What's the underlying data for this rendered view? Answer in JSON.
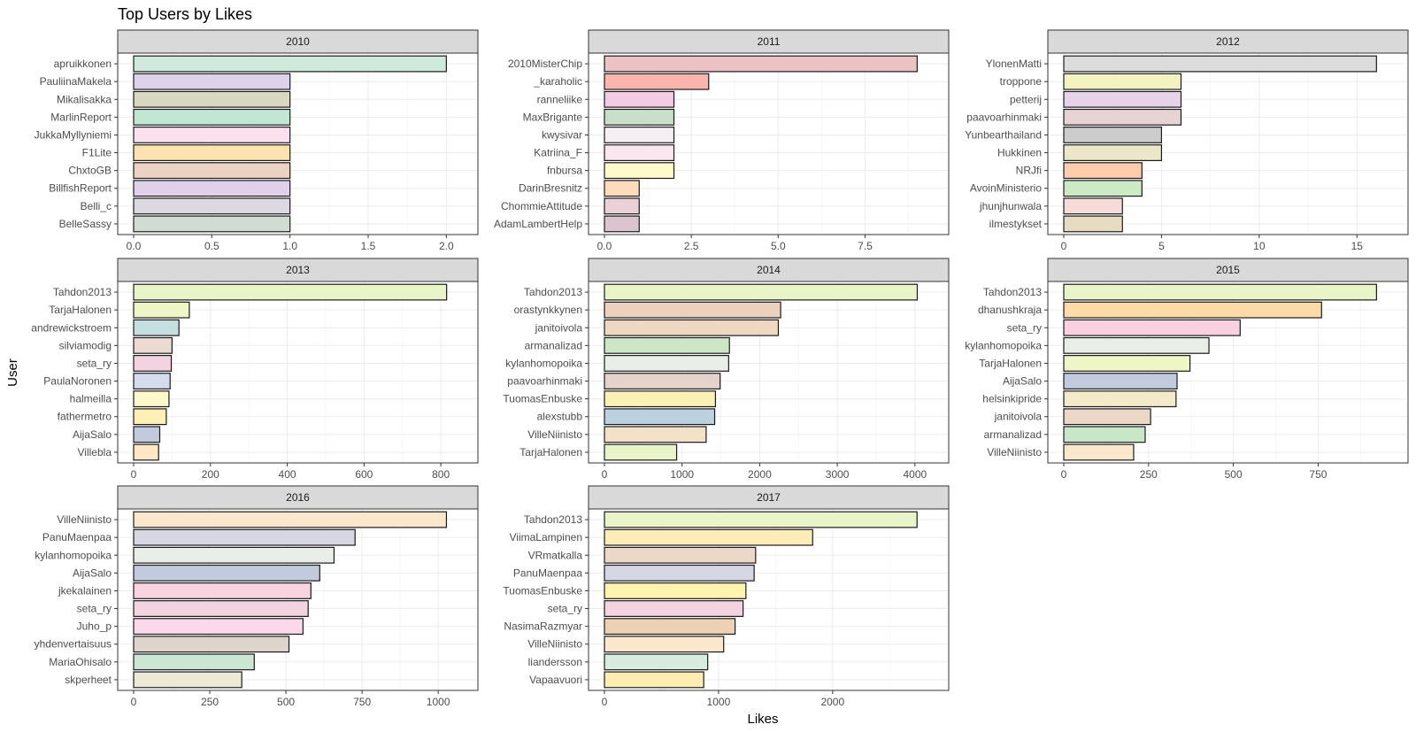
{
  "chart_data": {
    "type": "bar",
    "orientation": "horizontal",
    "layout": "facet_wrap",
    "title": "Top Users by Likes",
    "xlabel": "Likes",
    "ylabel": "User",
    "panels": [
      {
        "facet": "2010",
        "xlim": [
          0,
          2.1
        ],
        "xticks": [
          0,
          0.5,
          1,
          1.5,
          2
        ],
        "xtick_labels": [
          "0.0",
          "0.5",
          "1.0",
          "1.5",
          "2.0"
        ],
        "categories": [
          "apruikkonen",
          "PauliinaMakela",
          "Mikalisakka",
          "MarlinReport",
          "JukkaMyllyniemi",
          "F1Lite",
          "ChxtoGB",
          "BillfishReport",
          "Belli_c",
          "BelleSassy"
        ],
        "values": [
          2,
          1,
          1,
          1,
          1,
          1,
          1,
          1,
          1,
          1
        ],
        "colors": [
          "#cfe9dd",
          "#dcd3ea",
          "#d8d8c0",
          "#c0e6d4",
          "#fbe0ee",
          "#fde3b0",
          "#ecd2c2",
          "#e0d0ea",
          "#dcd8df",
          "#d3dcd3"
        ]
      },
      {
        "facet": "2011",
        "xlim": [
          0,
          9.45
        ],
        "xticks": [
          0,
          2.5,
          5,
          7.5
        ],
        "xtick_labels": [
          "0.0",
          "2.5",
          "5.0",
          "7.5"
        ],
        "categories": [
          "2010MisterChip",
          "_karaholic",
          "ranneliike",
          "MaxBrigante",
          "kwysivar",
          "Katriina_F",
          "fnbursa",
          "DarinBresnitz",
          "ChommieAttitude",
          "AdamLambertHelp"
        ],
        "values": [
          9,
          3,
          2,
          2,
          2,
          2,
          2,
          1,
          1,
          1
        ],
        "colors": [
          "#ecc2c5",
          "#fbb4ae",
          "#f4cbe4",
          "#c9dfc9",
          "#f5eef2",
          "#f9e6ef",
          "#fffacc",
          "#fddcbb",
          "#ebd0d8",
          "#dcc4cf"
        ]
      },
      {
        "facet": "2012",
        "xlim": [
          0,
          16.8
        ],
        "xticks": [
          0,
          5,
          10,
          15
        ],
        "xtick_labels": [
          "0",
          "5",
          "10",
          "15"
        ],
        "categories": [
          "YlonenMatti",
          "troppone",
          "petterij",
          "paavoarhinmaki",
          "Yunbearthailand",
          "Hukkinen",
          "NRJfi",
          "AvoinMinisterio",
          "jhunjhunwala",
          "ilmestykset"
        ],
        "values": [
          16,
          6,
          6,
          6,
          5,
          5,
          4,
          4,
          3,
          3
        ],
        "colors": [
          "#dcdcdc",
          "#f3f3bf",
          "#e7d3e7",
          "#e7d2d4",
          "#cccccc",
          "#ece7c9",
          "#fdcdac",
          "#ccebc5",
          "#f5dcd9",
          "#e6dcc2"
        ]
      },
      {
        "facet": "2013",
        "xlim": [
          0,
          855
        ],
        "xticks": [
          0,
          200,
          400,
          600,
          800
        ],
        "xtick_labels": [
          "0",
          "200",
          "400",
          "600",
          "800"
        ],
        "categories": [
          "Tahdon2013",
          "TarjaHalonen",
          "andrewickstroem",
          "silviamodig",
          "seta_ry",
          "PaulaNoronen",
          "halmeilla",
          "fathermetro",
          "AijaSalo",
          "Villebla"
        ],
        "values": [
          815,
          145,
          118,
          100,
          98,
          95,
          92,
          85,
          68,
          65
        ],
        "colors": [
          "#e9f4c8",
          "#eef6c6",
          "#c5dfe1",
          "#ecdbd3",
          "#f3d3e0",
          "#d5dcee",
          "#fdf8cc",
          "#fff0b5",
          "#c2cbde",
          "#fde7c5"
        ]
      },
      {
        "facet": "2014",
        "xlim": [
          0,
          4230
        ],
        "xticks": [
          0,
          1000,
          2000,
          3000,
          4000
        ],
        "xtick_labels": [
          "0",
          "1000",
          "2000",
          "3000",
          "4000"
        ],
        "categories": [
          "Tahdon2013",
          "orastynkkynen",
          "janitoivola",
          "armanalizad",
          "kylanhomopoika",
          "paavoarhinmaki",
          "TuomasEnbuske",
          "alexstubb",
          "VilleNiinisto",
          "TarjaHalonen"
        ],
        "values": [
          4030,
          2270,
          2240,
          1610,
          1600,
          1490,
          1430,
          1420,
          1310,
          930
        ],
        "colors": [
          "#e9f4c8",
          "#ecd1bf",
          "#efd8c2",
          "#cde7c6",
          "#e9eee9",
          "#e5d3cb",
          "#fbf1b4",
          "#bcd0e0",
          "#f3e2c8",
          "#e9f4c8"
        ]
      },
      {
        "facet": "2015",
        "xlim": [
          0,
          968
        ],
        "xticks": [
          0,
          250,
          500,
          750
        ],
        "xtick_labels": [
          "0",
          "250",
          "500",
          "750"
        ],
        "categories": [
          "Tahdon2013",
          "dhanushkraja",
          "seta_ry",
          "kylanhomopoika",
          "TarjaHalonen",
          "AijaSalo",
          "helsinkipride",
          "janitoivola",
          "armanalizad",
          "VilleNiinisto"
        ],
        "values": [
          922,
          760,
          520,
          428,
          372,
          334,
          331,
          256,
          240,
          206
        ],
        "colors": [
          "#e9f4c8",
          "#fddba8",
          "#f8d0df",
          "#e9eee9",
          "#eef6c6",
          "#c2cbde",
          "#f2eac8",
          "#ecd8c8",
          "#c8e6c8",
          "#fbe7cc"
        ]
      },
      {
        "facet": "2016",
        "xlim": [
          0,
          1078
        ],
        "xticks": [
          0,
          250,
          500,
          750,
          1000
        ],
        "xtick_labels": [
          "0",
          "250",
          "500",
          "750",
          "1000"
        ],
        "categories": [
          "VilleNiinisto",
          "PanuMaenpaa",
          "kylanhomopoika",
          "AijaSalo",
          "jkekalainen",
          "seta_ry",
          "Juho_p",
          "yhdenvertaisuus",
          "MariaOhisalo",
          "skperheet"
        ],
        "values": [
          1027,
          727,
          658,
          611,
          582,
          573,
          556,
          510,
          396,
          355
        ],
        "colors": [
          "#fbe7cc",
          "#d7d7e3",
          "#e9eee9",
          "#c2cbde",
          "#f8d4e0",
          "#f3d3e0",
          "#fcd9ea",
          "#ddd5cb",
          "#cbe6d3",
          "#ece9d5"
        ]
      },
      {
        "facet": "2017",
        "xlim": [
          0,
          2878
        ],
        "xticks": [
          0,
          1000,
          2000
        ],
        "xtick_labels": [
          "0",
          "1000",
          "2000"
        ],
        "categories": [
          "Tahdon2013",
          "ViimaLampinen",
          "VRmatkalla",
          "PanuMaenpaa",
          "TuomasEnbuske",
          "seta_ry",
          "NasimaRazmyar",
          "VilleNiinisto",
          "liandersson",
          "Vapaavuori"
        ],
        "values": [
          2740,
          1825,
          1325,
          1312,
          1240,
          1215,
          1145,
          1045,
          905,
          870
        ],
        "colors": [
          "#e9f4c8",
          "#fbecb8",
          "#ecd8c8",
          "#d7d7e3",
          "#fff3b0",
          "#f3d3e0",
          "#ecd1b5",
          "#fbe7cc",
          "#d7ebdf",
          "#feedb2"
        ]
      }
    ]
  }
}
